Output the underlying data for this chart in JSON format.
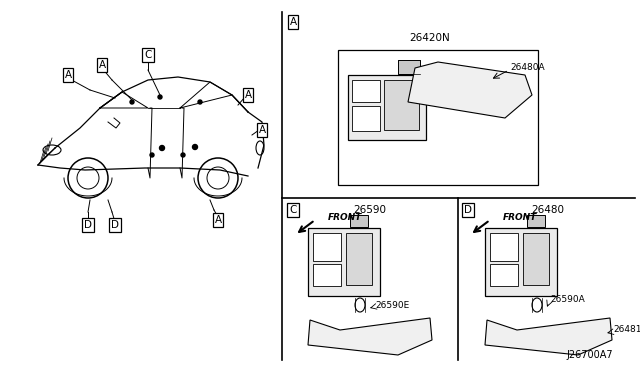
{
  "bg_color": "#ffffff",
  "line_color": "#000000",
  "fig_width": 6.4,
  "fig_height": 3.72,
  "dpi": 100,
  "diagram_code": "J26700A7",
  "section_A_label": "A",
  "section_C_label": "C",
  "section_D_label": "D",
  "part_26420N": "26420N",
  "part_26480A": "26480A",
  "part_26590": "26590",
  "part_26480": "26480",
  "part_26590E": "26590E",
  "part_26590A": "26590A",
  "part_26481": "26481",
  "front_label": "FRONT"
}
